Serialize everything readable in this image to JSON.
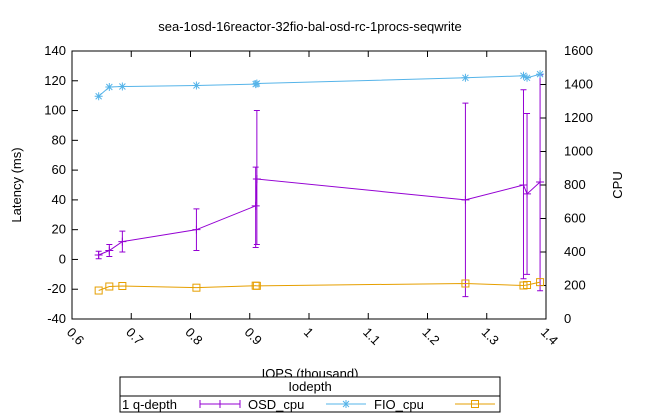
{
  "chart_data": {
    "type": "line",
    "title": "sea-1osd-16reactor-32fio-bal-osd-rc-1procs-seqwrite",
    "xlabel": "IOPS (thousand)",
    "ylabel": "Latency (ms)",
    "y2label": "CPU",
    "xlim": [
      0.6,
      1.4
    ],
    "ylim": [
      -40,
      140
    ],
    "y2lim": [
      0,
      1600
    ],
    "xticks": [
      "0.6",
      "0.7",
      "0.8",
      "0.9",
      "1",
      "1.1",
      "1.2",
      "1.3",
      "1.4"
    ],
    "yticks": [
      "-40",
      "-20",
      "0",
      "20",
      "40",
      "60",
      "80",
      "100",
      "120",
      "140"
    ],
    "y2ticks": [
      "0",
      "200",
      "400",
      "600",
      "800",
      "1000",
      "1200",
      "1400",
      "1600"
    ],
    "legend": {
      "title": "Iodepth",
      "row_label": "1 q-depth",
      "placement": "bottom"
    },
    "series": [
      {
        "name": "OSD_cpu",
        "color": "#9400d3",
        "marker": "plus-errorbar",
        "axis": "y",
        "points": [
          {
            "x": 0.645,
            "y": 3,
            "ylow": 0.5,
            "yhigh": 5.5
          },
          {
            "x": 0.663,
            "y": 6,
            "ylow": 2,
            "yhigh": 10
          },
          {
            "x": 0.685,
            "y": 12,
            "ylow": 5,
            "yhigh": 19
          },
          {
            "x": 0.81,
            "y": 20,
            "ylow": 6,
            "yhigh": 34
          },
          {
            "x": 0.91,
            "y": 36,
            "ylow": 8,
            "yhigh": 62
          },
          {
            "x": 0.912,
            "y": 54,
            "ylow": 10,
            "yhigh": 100
          },
          {
            "x": 1.264,
            "y": 40,
            "ylow": -25,
            "yhigh": 105
          },
          {
            "x": 1.362,
            "y": 50,
            "ylow": -13,
            "yhigh": 114
          },
          {
            "x": 1.368,
            "y": 44,
            "ylow": -10,
            "yhigh": 98
          },
          {
            "x": 1.39,
            "y": 52,
            "ylow": -21,
            "yhigh": 124
          }
        ]
      },
      {
        "name": "FIO_cpu",
        "color": "#56b4e9",
        "marker": "star",
        "axis": "y2",
        "points": [
          {
            "x": 0.645,
            "y": 1330
          },
          {
            "x": 0.663,
            "y": 1385
          },
          {
            "x": 0.685,
            "y": 1388
          },
          {
            "x": 0.81,
            "y": 1394
          },
          {
            "x": 0.91,
            "y": 1402
          },
          {
            "x": 0.912,
            "y": 1406
          },
          {
            "x": 1.264,
            "y": 1440
          },
          {
            "x": 1.362,
            "y": 1452
          },
          {
            "x": 1.368,
            "y": 1440
          },
          {
            "x": 1.39,
            "y": 1462
          }
        ]
      },
      {
        "name": "FIO_cpu",
        "color": "#e69f00",
        "marker": "square",
        "axis": "y2",
        "points": [
          {
            "x": 0.645,
            "y": 170
          },
          {
            "x": 0.663,
            "y": 194
          },
          {
            "x": 0.685,
            "y": 197
          },
          {
            "x": 0.81,
            "y": 187
          },
          {
            "x": 0.91,
            "y": 199
          },
          {
            "x": 0.912,
            "y": 198
          },
          {
            "x": 1.264,
            "y": 212
          },
          {
            "x": 1.362,
            "y": 200
          },
          {
            "x": 1.368,
            "y": 203
          },
          {
            "x": 1.39,
            "y": 220
          }
        ]
      }
    ]
  }
}
